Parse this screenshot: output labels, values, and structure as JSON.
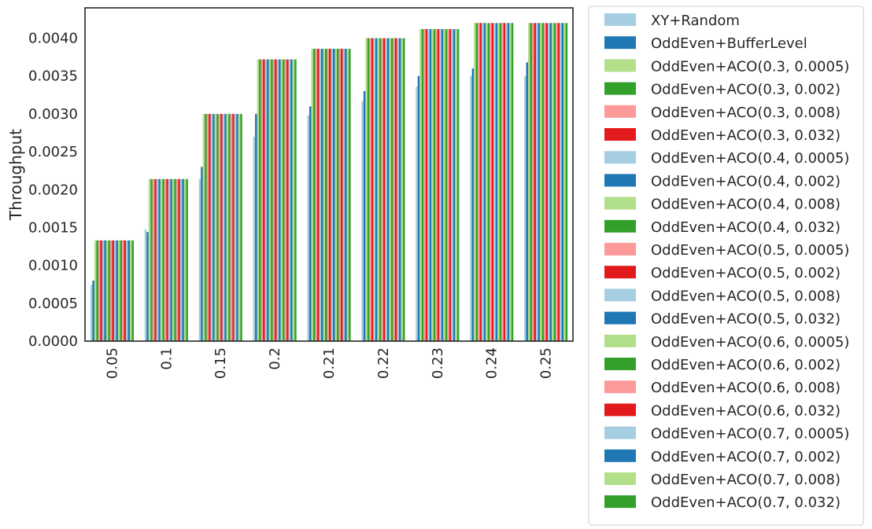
{
  "chart_data": {
    "type": "bar",
    "title": "",
    "xlabel": "",
    "ylabel": "Throughput",
    "ylim": [
      0,
      0.0044
    ],
    "yticks": [
      "0.0000",
      "0.0005",
      "0.0010",
      "0.0015",
      "0.0020",
      "0.0025",
      "0.0030",
      "0.0035",
      "0.0040"
    ],
    "grid": false,
    "legend_position": "outside-right",
    "categories": [
      "0.05",
      "0.1",
      "0.15",
      "0.2",
      "0.21",
      "0.22",
      "0.23",
      "0.24",
      "0.25"
    ],
    "series": [
      {
        "name": "XY+Random",
        "color": "#a6cee3",
        "values": [
          0.00074,
          0.00148,
          0.00214,
          0.0027,
          0.00298,
          0.00317,
          0.00336,
          0.0035,
          0.0035
        ]
      },
      {
        "name": "OddEven+BufferLevel",
        "color": "#1f78b4",
        "values": [
          0.0008,
          0.00144,
          0.0023,
          0.003,
          0.0031,
          0.0033,
          0.0035,
          0.0036,
          0.00368
        ]
      },
      {
        "name": "OddEven+ACO(0.3, 0.0005)",
        "color": "#b2df8a",
        "values": [
          0.00133,
          0.00214,
          0.003,
          0.00372,
          0.00386,
          0.004,
          0.00412,
          0.0042,
          0.0042
        ]
      },
      {
        "name": "OddEven+ACO(0.3, 0.002)",
        "color": "#33a02c",
        "values": [
          0.00133,
          0.00214,
          0.003,
          0.00372,
          0.00386,
          0.004,
          0.00412,
          0.0042,
          0.0042
        ]
      },
      {
        "name": "OddEven+ACO(0.3, 0.008)",
        "color": "#fb9a99",
        "values": [
          0.00133,
          0.00214,
          0.003,
          0.00372,
          0.00386,
          0.004,
          0.00412,
          0.0042,
          0.0042
        ]
      },
      {
        "name": "OddEven+ACO(0.3, 0.032)",
        "color": "#e31a1c",
        "values": [
          0.00133,
          0.00214,
          0.003,
          0.00372,
          0.00386,
          0.004,
          0.00412,
          0.0042,
          0.0042
        ]
      },
      {
        "name": "OddEven+ACO(0.4, 0.0005)",
        "color": "#a6cee3",
        "values": [
          0.00133,
          0.00214,
          0.003,
          0.00372,
          0.00386,
          0.004,
          0.00412,
          0.0042,
          0.0042
        ]
      },
      {
        "name": "OddEven+ACO(0.4, 0.002)",
        "color": "#1f78b4",
        "values": [
          0.00133,
          0.00214,
          0.003,
          0.00372,
          0.00386,
          0.004,
          0.00412,
          0.0042,
          0.0042
        ]
      },
      {
        "name": "OddEven+ACO(0.4, 0.008)",
        "color": "#b2df8a",
        "values": [
          0.00133,
          0.00214,
          0.003,
          0.00372,
          0.00386,
          0.004,
          0.00412,
          0.0042,
          0.0042
        ]
      },
      {
        "name": "OddEven+ACO(0.4, 0.032)",
        "color": "#33a02c",
        "values": [
          0.00133,
          0.00214,
          0.003,
          0.00372,
          0.00386,
          0.004,
          0.00412,
          0.0042,
          0.0042
        ]
      },
      {
        "name": "OddEven+ACO(0.5, 0.0005)",
        "color": "#fb9a99",
        "values": [
          0.00133,
          0.00214,
          0.003,
          0.00372,
          0.00386,
          0.004,
          0.00412,
          0.0042,
          0.0042
        ]
      },
      {
        "name": "OddEven+ACO(0.5, 0.002)",
        "color": "#e31a1c",
        "values": [
          0.00133,
          0.00214,
          0.003,
          0.00372,
          0.00386,
          0.004,
          0.00412,
          0.0042,
          0.0042
        ]
      },
      {
        "name": "OddEven+ACO(0.5, 0.008)",
        "color": "#a6cee3",
        "values": [
          0.00133,
          0.00214,
          0.003,
          0.00372,
          0.00386,
          0.004,
          0.00412,
          0.0042,
          0.0042
        ]
      },
      {
        "name": "OddEven+ACO(0.5, 0.032)",
        "color": "#1f78b4",
        "values": [
          0.00133,
          0.00214,
          0.003,
          0.00372,
          0.00386,
          0.004,
          0.00412,
          0.0042,
          0.0042
        ]
      },
      {
        "name": "OddEven+ACO(0.6, 0.0005)",
        "color": "#b2df8a",
        "values": [
          0.00133,
          0.00214,
          0.003,
          0.00372,
          0.00386,
          0.004,
          0.00412,
          0.0042,
          0.0042
        ]
      },
      {
        "name": "OddEven+ACO(0.6, 0.002)",
        "color": "#33a02c",
        "values": [
          0.00133,
          0.00214,
          0.003,
          0.00372,
          0.00386,
          0.004,
          0.00412,
          0.0042,
          0.0042
        ]
      },
      {
        "name": "OddEven+ACO(0.6, 0.008)",
        "color": "#fb9a99",
        "values": [
          0.00133,
          0.00214,
          0.003,
          0.00372,
          0.00386,
          0.004,
          0.00412,
          0.0042,
          0.0042
        ]
      },
      {
        "name": "OddEven+ACO(0.6, 0.032)",
        "color": "#e31a1c",
        "values": [
          0.00133,
          0.00214,
          0.003,
          0.00372,
          0.00386,
          0.004,
          0.00412,
          0.0042,
          0.0042
        ]
      },
      {
        "name": "OddEven+ACO(0.7, 0.0005)",
        "color": "#a6cee3",
        "values": [
          0.00133,
          0.00214,
          0.003,
          0.00372,
          0.00386,
          0.004,
          0.00412,
          0.0042,
          0.0042
        ]
      },
      {
        "name": "OddEven+ACO(0.7, 0.002)",
        "color": "#1f78b4",
        "values": [
          0.00133,
          0.00214,
          0.003,
          0.00372,
          0.00386,
          0.004,
          0.00412,
          0.0042,
          0.0042
        ]
      },
      {
        "name": "OddEven+ACO(0.7, 0.008)",
        "color": "#b2df8a",
        "values": [
          0.00133,
          0.00214,
          0.003,
          0.00372,
          0.00386,
          0.004,
          0.00412,
          0.0042,
          0.0042
        ]
      },
      {
        "name": "OddEven+ACO(0.7, 0.032)",
        "color": "#33a02c",
        "values": [
          0.00133,
          0.00214,
          0.003,
          0.00372,
          0.00386,
          0.004,
          0.00412,
          0.0042,
          0.0042
        ]
      }
    ]
  }
}
